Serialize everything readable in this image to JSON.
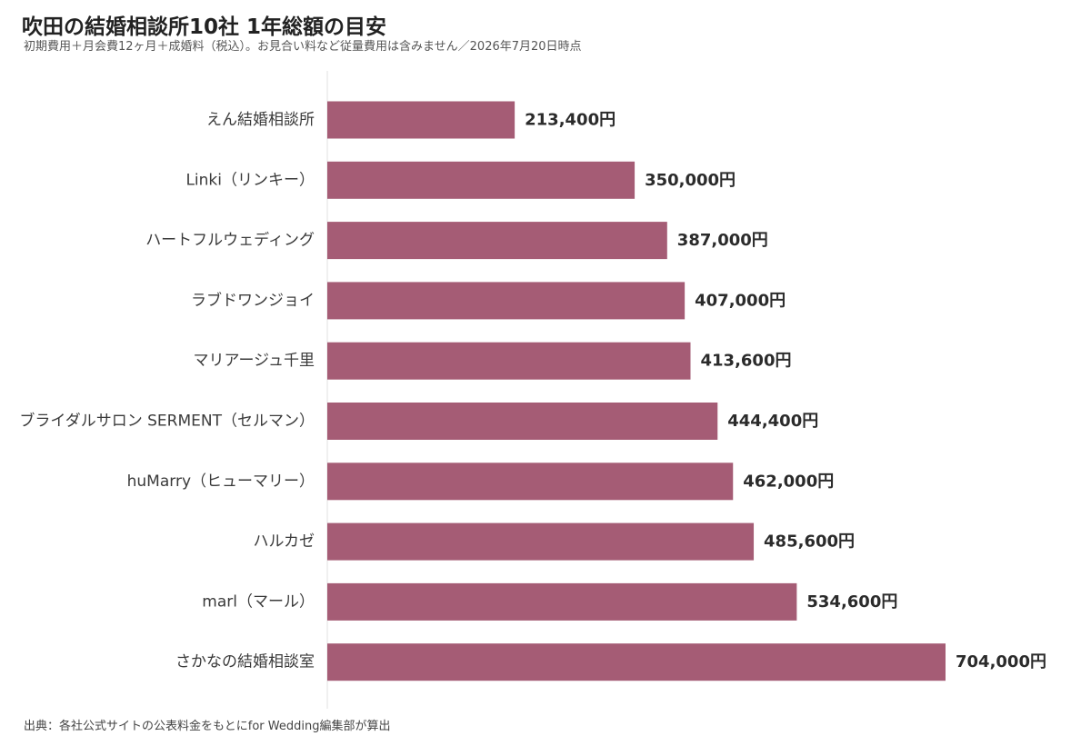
{
  "header": {
    "title": "吹田の結婚相談所10社 1年総額の目安",
    "subtitle": "初期費用＋月会費12ヶ月＋成婚料（税込）。お見合い料など従量費用は含みません／2026年7月20日時点"
  },
  "footer": {
    "source": "出典：各社公式サイトの公表料金をもとにfor Wedding編集部が算出"
  },
  "chart_data": {
    "type": "bar",
    "orientation": "horizontal",
    "title": "吹田の結婚相談所10社 1年総額の目安",
    "subtitle": "初期費用＋月会費12ヶ月＋成婚料（税込）。お見合い料など従量費用は含みません／2026年7月20日時点",
    "xlabel": "",
    "ylabel": "",
    "categories": [
      "えん結婚相談所",
      "Linki（リンキー）",
      "ハートフルウェディング",
      "ラブドワンジョイ",
      "マリアージュ千里",
      "ブライダルサロン SERMENT（セルマン）",
      "huMarry（ヒューマリー）",
      "ハルカゼ",
      "marl（マール）",
      "さかなの結婚相談室"
    ],
    "values": [
      213400,
      350000,
      387000,
      407000,
      413600,
      444400,
      462000,
      485600,
      534600,
      704000
    ],
    "value_labels": [
      "213,400円",
      "350,000円",
      "387,000円",
      "407,000円",
      "413,600円",
      "444,400円",
      "462,000円",
      "485,600円",
      "534,600円",
      "704,000円"
    ],
    "xlim": [
      0,
      704000
    ],
    "grid": false,
    "bar_color": "#a55c75"
  }
}
